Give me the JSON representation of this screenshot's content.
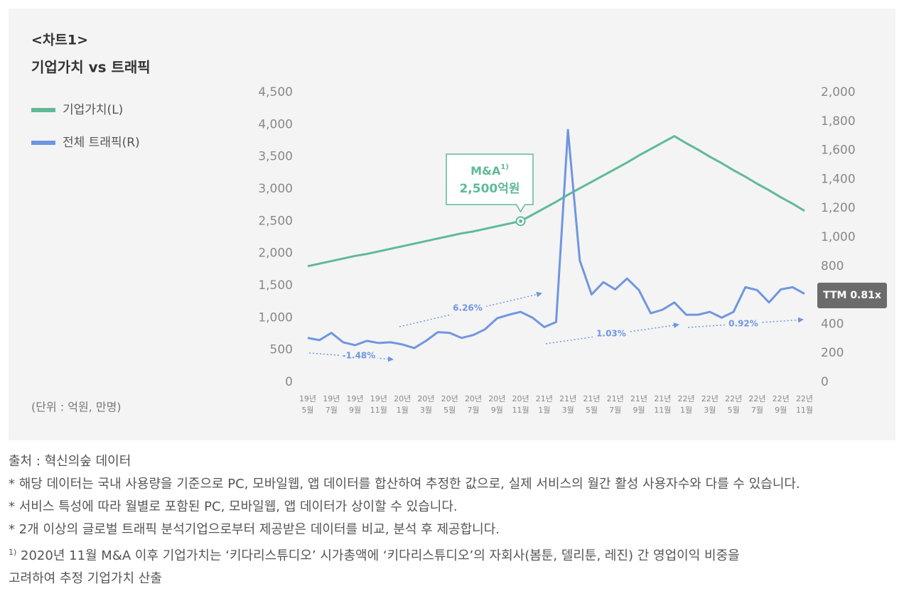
{
  "chart_data": {
    "type": "line",
    "label": "<차트1>",
    "title": "기업가치 vs 트래픽",
    "unit_note": "(단위 : 억원, 만명)",
    "categories": [
      [
        "19년",
        "5월"
      ],
      null,
      [
        "19년",
        "7월"
      ],
      null,
      [
        "19년",
        "9월"
      ],
      null,
      [
        "19년",
        "11월"
      ],
      null,
      [
        "20년",
        "1월"
      ],
      null,
      [
        "20년",
        "3월"
      ],
      null,
      [
        "20년",
        "5월"
      ],
      null,
      [
        "20년",
        "7월"
      ],
      null,
      [
        "20년",
        "9월"
      ],
      null,
      [
        "20년",
        "11월"
      ],
      null,
      [
        "21년",
        "1월"
      ],
      null,
      [
        "21년",
        "3월"
      ],
      null,
      [
        "21년",
        "5월"
      ],
      null,
      [
        "21년",
        "7월"
      ],
      null,
      [
        "21년",
        "9월"
      ],
      null,
      [
        "21년",
        "11월"
      ],
      null,
      [
        "22년",
        "1월"
      ],
      null,
      [
        "22년",
        "3월"
      ],
      null,
      [
        "22년",
        "5월"
      ],
      null,
      [
        "22년",
        "7월"
      ],
      null,
      [
        "22년",
        "9월"
      ],
      null,
      [
        "22년",
        "11월"
      ]
    ],
    "series": [
      {
        "name": "기업가치(L)",
        "color": "#5fba96",
        "axis": "y",
        "values": [
          1800,
          1840,
          1880,
          1920,
          1960,
          1990,
          2030,
          2070,
          2110,
          2150,
          2190,
          2230,
          2270,
          2310,
          2340,
          2380,
          2420,
          2460,
          2500,
          2600,
          2700,
          2800,
          2910,
          3010,
          3110,
          3210,
          3310,
          3410,
          3520,
          3620,
          3720,
          3820,
          3710,
          3610,
          3500,
          3400,
          3290,
          3190,
          3080,
          2980,
          2870,
          2770,
          2660
        ]
      },
      {
        "name": "전체 트래픽(R)",
        "color": "#6f96e0",
        "axis": "y2",
        "values": [
          305,
          290,
          340,
          275,
          255,
          285,
          270,
          275,
          260,
          235,
          285,
          345,
          340,
          305,
          325,
          365,
          440,
          465,
          485,
          445,
          380,
          415,
          1740,
          840,
          605,
          690,
          640,
          715,
          635,
          475,
          500,
          550,
          465,
          465,
          485,
          445,
          485,
          655,
          635,
          550,
          640,
          655,
          610
        ]
      }
    ],
    "ylim": [
      0,
      4500
    ],
    "yticks": [
      0,
      500,
      {
        "value": 1000,
        "label": "1,000"
      },
      {
        "value": 1500,
        "label": "1,500"
      },
      {
        "value": 2000,
        "label": "2,000"
      },
      {
        "value": 2500,
        "label": "2,500"
      },
      {
        "value": 3000,
        "label": "3,000"
      },
      {
        "value": 3500,
        "label": "3,500"
      },
      {
        "value": 4000,
        "label": "4,000"
      },
      {
        "value": 4500,
        "label": "4,500"
      }
    ],
    "y2lim": [
      0,
      2000
    ],
    "y2ticks": [
      0,
      200,
      400,
      600,
      800,
      {
        "value": 1000,
        "label": "1,000"
      },
      {
        "value": 1200,
        "label": "1,200"
      },
      {
        "value": 1400,
        "label": "1,400"
      },
      {
        "value": 1600,
        "label": "1,600"
      },
      {
        "value": 1800,
        "label": "1,800"
      },
      {
        "value": 2000,
        "label": "2,000"
      }
    ],
    "ma_note": {
      "text": "M&A",
      "sup": "1)",
      "label": "2,500억원"
    },
    "ttm_label": "TTM 0.81x",
    "growth_labels": [
      "-1.48%",
      "6.26%",
      "1.03%",
      "0.92%"
    ]
  },
  "notes": {
    "source": "출처 : 혁신의숲 데이터",
    "items": [
      "* 해당 데이터는 국내 사용량을 기준으로 PC, 모바일웹, 앱 데이터를 합산하여 추정한 값으로, 실제 서비스의 월간 활성 사용자수와 다를 수 있습니다.",
      "* 서비스 특성에 따라 월별로 포함된 PC, 모바일웹, 앱 데이터가 상이할 수 있습니다.",
      "* 2개 이상의 글로벌 트래픽 분석기업으로부터 제공받은 데이터를 비교, 분석 후 제공합니다."
    ],
    "footnote_mark": "1)",
    "footnote_lines": [
      "2020년 11월 M&A 이후 기업가치는 ‘키다리스튜디오’ 시가총액에 ‘키다리스튜디오’의 자회사(봄툰, 델리툰, 레진) 간 영업이익 비중을",
      "고려하여 추정 기업가치 산출"
    ]
  }
}
